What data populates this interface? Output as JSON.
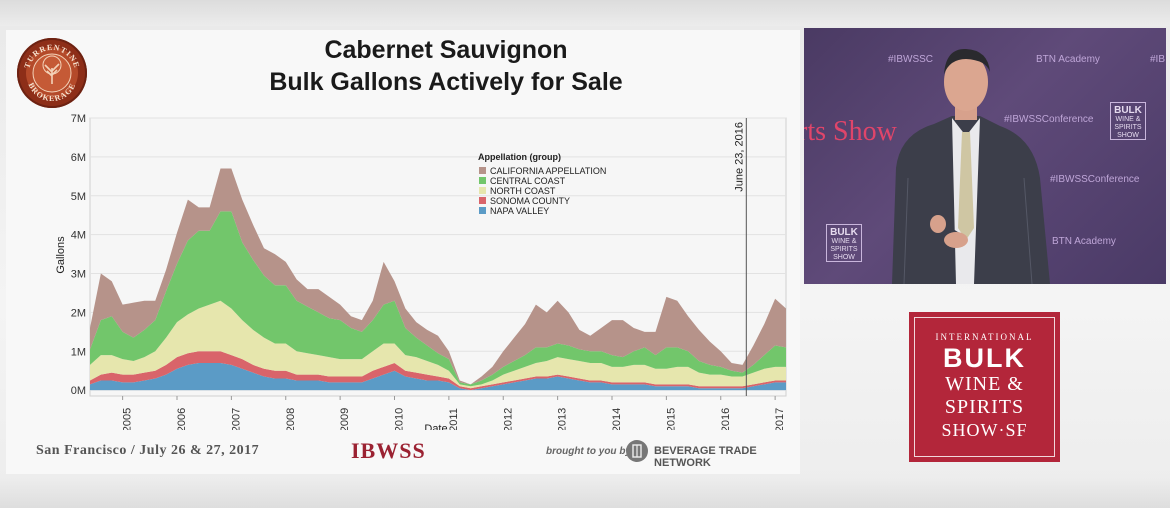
{
  "slide": {
    "title_line1": "Cabernet Sauvignon",
    "title_line2": "Bulk Gallons Actively for Sale",
    "logo_text": "TURRENTINE BROKERAGE",
    "footer_city_date": "San Francisco / July 26 & 27, 2017",
    "footer_event": "IBWSS",
    "footer_brought": "brought to you by",
    "footer_sponsor": "BEVERAGE TRADE NETWORK"
  },
  "video": {
    "watermarks": [
      "#IBWSSC",
      "BTN Academy",
      "#IBWSSConference",
      "#IBWSSConference",
      "BTN Academy",
      "#IB"
    ],
    "show_text": "rts Show",
    "mini_logo": {
      "line1": "BULK",
      "line2": "WINE &",
      "line3": "SPIRITS",
      "line4": "SHOW"
    }
  },
  "event_logo": {
    "line1": "INTERNATIONAL",
    "line2": "BULK",
    "line3": "WINE &",
    "line4": "SPIRITS",
    "line5": "SHOW·SF"
  },
  "chart_data": {
    "type": "area",
    "stacked": true,
    "title": "Cabernet Sauvignon Bulk Gallons Actively for Sale",
    "xlabel": "Date",
    "ylabel": "Gallons",
    "xlim": [
      2004.4,
      2017.2
    ],
    "ylim": [
      -0.15,
      7
    ],
    "yticks": [
      0,
      1,
      2,
      3,
      4,
      5,
      6,
      7
    ],
    "ytick_labels": [
      "0M",
      "1M",
      "2M",
      "3M",
      "4M",
      "5M",
      "6M",
      "7M"
    ],
    "xticks": [
      2005,
      2006,
      2007,
      2008,
      2009,
      2010,
      2011,
      2012,
      2013,
      2014,
      2015,
      2016,
      2017
    ],
    "xtick_labels": [
      "2005",
      "2006",
      "2007",
      "2008",
      "2009",
      "2010",
      "2011",
      "2012",
      "2013",
      "2014",
      "2015",
      "2016",
      "2017"
    ],
    "legend_title": "Appellation (group)",
    "legend_position": "top-center",
    "annotation": {
      "x": 2016.47,
      "label": "June 23, 2016"
    },
    "x": [
      2004.4,
      2004.6,
      2004.8,
      2005.0,
      2005.2,
      2005.4,
      2005.6,
      2005.8,
      2006.0,
      2006.2,
      2006.4,
      2006.6,
      2006.8,
      2007.0,
      2007.2,
      2007.4,
      2007.6,
      2007.8,
      2008.0,
      2008.2,
      2008.4,
      2008.6,
      2008.8,
      2009.0,
      2009.2,
      2009.4,
      2009.6,
      2009.8,
      2010.0,
      2010.2,
      2010.4,
      2010.6,
      2010.8,
      2011.0,
      2011.2,
      2011.4,
      2011.6,
      2011.8,
      2012.0,
      2012.2,
      2012.4,
      2012.6,
      2012.8,
      2013.0,
      2013.2,
      2013.4,
      2013.6,
      2013.8,
      2014.0,
      2014.2,
      2014.4,
      2014.6,
      2014.8,
      2015.0,
      2015.2,
      2015.4,
      2015.6,
      2015.8,
      2016.0,
      2016.2,
      2016.4,
      2016.6,
      2016.8,
      2017.0,
      2017.2
    ],
    "series": [
      {
        "name": "NAPA VALLEY",
        "color": "#5b9bc6",
        "values": [
          0.15,
          0.25,
          0.25,
          0.2,
          0.2,
          0.25,
          0.3,
          0.4,
          0.55,
          0.65,
          0.7,
          0.7,
          0.7,
          0.65,
          0.55,
          0.45,
          0.35,
          0.3,
          0.3,
          0.25,
          0.25,
          0.25,
          0.2,
          0.2,
          0.2,
          0.2,
          0.3,
          0.4,
          0.5,
          0.35,
          0.3,
          0.25,
          0.25,
          0.2,
          0.05,
          0.0,
          0.05,
          0.1,
          0.15,
          0.2,
          0.25,
          0.3,
          0.3,
          0.35,
          0.3,
          0.25,
          0.2,
          0.2,
          0.15,
          0.15,
          0.15,
          0.15,
          0.1,
          0.1,
          0.1,
          0.1,
          0.05,
          0.05,
          0.05,
          0.05,
          0.05,
          0.1,
          0.15,
          0.2,
          0.2
        ]
      },
      {
        "name": "SONOMA COUNTY",
        "color": "#d9646a",
        "values": [
          0.1,
          0.15,
          0.2,
          0.2,
          0.2,
          0.2,
          0.2,
          0.25,
          0.3,
          0.3,
          0.3,
          0.3,
          0.3,
          0.25,
          0.25,
          0.2,
          0.2,
          0.2,
          0.2,
          0.15,
          0.15,
          0.15,
          0.15,
          0.15,
          0.15,
          0.15,
          0.2,
          0.2,
          0.2,
          0.15,
          0.15,
          0.15,
          0.1,
          0.1,
          0.05,
          0.05,
          0.05,
          0.05,
          0.05,
          0.05,
          0.05,
          0.05,
          0.05,
          0.05,
          0.05,
          0.05,
          0.05,
          0.05,
          0.05,
          0.05,
          0.05,
          0.05,
          0.05,
          0.05,
          0.05,
          0.05,
          0.05,
          0.05,
          0.05,
          0.05,
          0.05,
          0.05,
          0.05,
          0.05,
          0.05
        ]
      },
      {
        "name": "NORTH COAST",
        "color": "#e6e6ad",
        "values": [
          0.4,
          0.5,
          0.45,
          0.4,
          0.35,
          0.4,
          0.5,
          0.7,
          0.9,
          1.0,
          1.1,
          1.2,
          1.3,
          1.2,
          1.0,
          0.9,
          0.8,
          0.7,
          0.7,
          0.6,
          0.55,
          0.5,
          0.5,
          0.45,
          0.45,
          0.45,
          0.5,
          0.6,
          0.5,
          0.4,
          0.4,
          0.35,
          0.3,
          0.2,
          0.05,
          0.05,
          0.05,
          0.1,
          0.2,
          0.25,
          0.3,
          0.35,
          0.4,
          0.45,
          0.45,
          0.45,
          0.45,
          0.45,
          0.4,
          0.4,
          0.45,
          0.45,
          0.4,
          0.4,
          0.45,
          0.45,
          0.35,
          0.3,
          0.3,
          0.25,
          0.25,
          0.3,
          0.35,
          0.35,
          0.35
        ]
      },
      {
        "name": "CENTRAL COAST",
        "color": "#72c66b",
        "values": [
          0.4,
          0.9,
          1.0,
          0.7,
          0.6,
          0.7,
          0.8,
          1.2,
          1.5,
          1.9,
          2.0,
          1.9,
          2.3,
          2.5,
          2.0,
          1.8,
          1.6,
          1.5,
          1.5,
          1.3,
          1.2,
          1.1,
          1.0,
          1.0,
          0.8,
          0.7,
          0.8,
          1.0,
          1.1,
          0.7,
          0.5,
          0.4,
          0.3,
          0.3,
          0.05,
          0.05,
          0.1,
          0.15,
          0.2,
          0.25,
          0.3,
          0.4,
          0.35,
          0.35,
          0.35,
          0.3,
          0.3,
          0.3,
          0.3,
          0.25,
          0.35,
          0.45,
          0.35,
          0.55,
          0.5,
          0.4,
          0.3,
          0.25,
          0.2,
          0.15,
          0.1,
          0.2,
          0.35,
          0.55,
          0.5
        ]
      },
      {
        "name": "CALIFORNIA APPELLATION",
        "color": "#b6938a",
        "values": [
          0.55,
          1.2,
          0.9,
          0.7,
          0.9,
          0.75,
          0.5,
          0.55,
          0.8,
          1.05,
          0.6,
          0.6,
          1.1,
          1.1,
          1.1,
          0.9,
          0.7,
          0.8,
          0.6,
          0.55,
          0.45,
          0.6,
          0.55,
          0.4,
          0.3,
          0.3,
          0.5,
          1.1,
          0.5,
          0.5,
          0.4,
          0.4,
          0.45,
          0.2,
          0.05,
          0.0,
          0.1,
          0.2,
          0.4,
          0.6,
          0.8,
          1.1,
          0.9,
          1.1,
          0.85,
          0.5,
          0.4,
          0.6,
          0.9,
          0.95,
          0.6,
          0.4,
          0.6,
          1.3,
          1.2,
          0.9,
          0.8,
          0.6,
          0.4,
          0.2,
          0.2,
          0.5,
          0.8,
          1.2,
          1.0
        ]
      }
    ]
  }
}
